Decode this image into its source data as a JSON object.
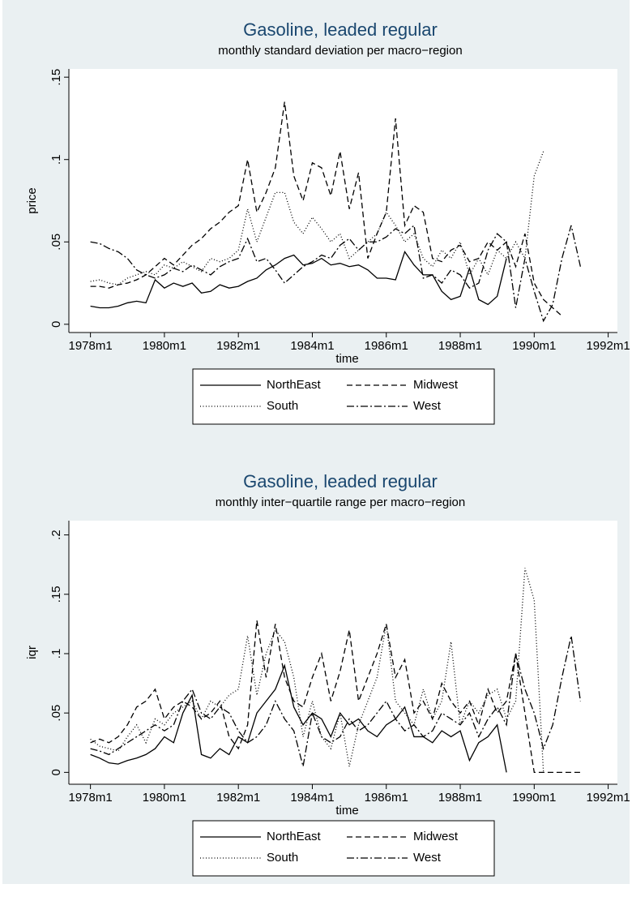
{
  "chart_data": [
    {
      "type": "line",
      "title": "Gasoline, leaded regular",
      "subtitle": "monthly standard deviation per macro−region",
      "x_label": "time",
      "y_label": "price",
      "x": [
        "1978m1",
        "1978m4",
        "1978m7",
        "1978m10",
        "1979m1",
        "1979m4",
        "1979m7",
        "1979m10",
        "1980m1",
        "1980m4",
        "1980m7",
        "1980m10",
        "1981m1",
        "1981m4",
        "1981m7",
        "1981m10",
        "1982m1",
        "1982m4",
        "1982m7",
        "1982m10",
        "1983m1",
        "1983m4",
        "1983m7",
        "1983m10",
        "1984m1",
        "1984m4",
        "1984m7",
        "1984m10",
        "1985m1",
        "1985m4",
        "1985m7",
        "1985m10",
        "1986m1",
        "1986m4",
        "1986m7",
        "1986m10",
        "1987m1",
        "1987m4",
        "1987m7",
        "1987m10",
        "1988m1",
        "1988m4",
        "1988m7",
        "1988m10",
        "1989m1",
        "1989m4",
        "1989m7",
        "1989m10",
        "1990m1",
        "1990m4",
        "1990m7",
        "1990m10",
        "1991m1",
        "1991m4"
      ],
      "xlim": [
        "1977m6",
        "1992m4"
      ],
      "xticks": [
        "1978m1",
        "1980m1",
        "1982m1",
        "1984m1",
        "1986m1",
        "1988m1",
        "1990m1",
        "1992m1"
      ],
      "ylim": [
        -0.005,
        0.155
      ],
      "yticks": [
        {
          "value": 0,
          "label": "0"
        },
        {
          "value": 0.05,
          "label": ".05"
        },
        {
          "value": 0.1,
          "label": ".1"
        },
        {
          "value": 0.15,
          "label": ".15"
        }
      ],
      "legend": "bottom",
      "series": [
        {
          "name": "NorthEast",
          "color": "#000000",
          "dash": "solid",
          "values": [
            0.011,
            0.01,
            0.01,
            0.011,
            0.013,
            0.014,
            0.013,
            0.027,
            0.022,
            0.025,
            0.023,
            0.025,
            0.019,
            0.02,
            0.024,
            0.022,
            0.023,
            0.026,
            0.028,
            0.033,
            0.036,
            0.04,
            0.042,
            0.036,
            0.037,
            0.04,
            0.036,
            0.037,
            0.035,
            0.036,
            0.033,
            0.028,
            0.028,
            0.027,
            0.044,
            0.036,
            0.03,
            0.03,
            0.02,
            0.015,
            0.017,
            0.034,
            0.015,
            0.012,
            0.017,
            0.04,
            null,
            null,
            null,
            null,
            null,
            null,
            null,
            null
          ]
        },
        {
          "name": "Midwest",
          "color": "#000000",
          "dash": "dash",
          "values": [
            0.023,
            0.023,
            0.022,
            0.024,
            0.025,
            0.027,
            0.03,
            0.035,
            0.04,
            0.036,
            0.042,
            0.048,
            0.052,
            0.058,
            0.062,
            0.068,
            0.072,
            0.1,
            0.068,
            0.08,
            0.095,
            0.135,
            0.09,
            0.075,
            0.098,
            0.095,
            0.078,
            0.105,
            0.07,
            0.092,
            0.04,
            0.055,
            0.068,
            0.125,
            0.06,
            0.072,
            0.068,
            0.04,
            0.038,
            0.045,
            0.048,
            0.038,
            0.04,
            0.05,
            0.045,
            0.05,
            0.035,
            0.055,
            0.025,
            0.015,
            0.01,
            0.005,
            null,
            null
          ]
        },
        {
          "name": "South",
          "color": "#000000",
          "dash": "dot",
          "values": [
            0.026,
            0.027,
            0.025,
            0.024,
            0.028,
            0.03,
            0.032,
            0.03,
            0.036,
            0.034,
            0.038,
            0.035,
            0.032,
            0.04,
            0.038,
            0.04,
            0.045,
            0.07,
            0.05,
            0.065,
            0.08,
            0.08,
            0.062,
            0.055,
            0.065,
            0.058,
            0.05,
            0.055,
            0.04,
            0.045,
            0.05,
            0.055,
            0.068,
            0.06,
            0.05,
            0.055,
            0.04,
            0.035,
            0.045,
            0.04,
            0.05,
            0.03,
            0.04,
            0.03,
            0.045,
            0.04,
            0.05,
            0.04,
            0.09,
            0.105,
            null,
            null,
            null,
            null
          ]
        },
        {
          "name": "West",
          "color": "#000000",
          "dash": "dashdot",
          "values": [
            0.05,
            0.049,
            0.046,
            0.044,
            0.04,
            0.033,
            0.03,
            0.028,
            0.03,
            0.034,
            0.032,
            0.036,
            0.033,
            0.03,
            0.035,
            0.038,
            0.04,
            0.052,
            0.038,
            0.04,
            0.033,
            0.025,
            0.03,
            0.035,
            0.038,
            0.042,
            0.04,
            0.048,
            0.052,
            0.045,
            0.05,
            0.05,
            0.053,
            0.058,
            0.055,
            0.06,
            0.028,
            0.03,
            0.025,
            0.033,
            0.03,
            0.022,
            0.025,
            0.045,
            0.055,
            0.05,
            0.01,
            0.04,
            0.02,
            0.002,
            0.012,
            0.04,
            0.06,
            0.035
          ]
        }
      ]
    },
    {
      "type": "line",
      "title": "Gasoline, leaded regular",
      "subtitle": "monthly inter−quartile range per macro−region",
      "x_label": "time",
      "y_label": "iqr",
      "x": [
        "1978m1",
        "1978m4",
        "1978m7",
        "1978m10",
        "1979m1",
        "1979m4",
        "1979m7",
        "1979m10",
        "1980m1",
        "1980m4",
        "1980m7",
        "1980m10",
        "1981m1",
        "1981m4",
        "1981m7",
        "1981m10",
        "1982m1",
        "1982m4",
        "1982m7",
        "1982m10",
        "1983m1",
        "1983m4",
        "1983m7",
        "1983m10",
        "1984m1",
        "1984m4",
        "1984m7",
        "1984m10",
        "1985m1",
        "1985m4",
        "1985m7",
        "1985m10",
        "1986m1",
        "1986m4",
        "1986m7",
        "1986m10",
        "1987m1",
        "1987m4",
        "1987m7",
        "1987m10",
        "1988m1",
        "1988m4",
        "1988m7",
        "1988m10",
        "1989m1",
        "1989m4",
        "1989m7",
        "1989m10",
        "1990m1",
        "1990m4",
        "1990m7",
        "1990m10",
        "1991m1",
        "1991m4"
      ],
      "xlim": [
        "1977m6",
        "1992m4"
      ],
      "xticks": [
        "1978m1",
        "1980m1",
        "1982m1",
        "1984m1",
        "1986m1",
        "1988m1",
        "1990m1",
        "1992m1"
      ],
      "ylim": [
        -0.01,
        0.212
      ],
      "yticks": [
        {
          "value": 0,
          "label": "0"
        },
        {
          "value": 0.05,
          "label": ".05"
        },
        {
          "value": 0.1,
          "label": ".1"
        },
        {
          "value": 0.15,
          "label": ".15"
        },
        {
          "value": 0.2,
          "label": ".2"
        }
      ],
      "legend": "bottom",
      "series": [
        {
          "name": "NorthEast",
          "color": "#000000",
          "dash": "solid",
          "values": [
            0.015,
            0.012,
            0.008,
            0.007,
            0.01,
            0.012,
            0.015,
            0.02,
            0.03,
            0.025,
            0.05,
            0.065,
            0.015,
            0.012,
            0.02,
            0.015,
            0.03,
            0.025,
            0.05,
            0.06,
            0.07,
            0.09,
            0.055,
            0.04,
            0.05,
            0.045,
            0.03,
            0.05,
            0.04,
            0.045,
            0.035,
            0.03,
            0.04,
            0.045,
            0.055,
            0.03,
            0.03,
            0.025,
            0.035,
            0.03,
            0.035,
            0.01,
            0.025,
            0.03,
            0.04,
            0.0,
            null,
            null,
            null,
            null,
            null,
            null,
            null,
            null
          ]
        },
        {
          "name": "Midwest",
          "color": "#000000",
          "dash": "dash",
          "values": [
            0.025,
            0.028,
            0.025,
            0.03,
            0.04,
            0.055,
            0.06,
            0.07,
            0.045,
            0.055,
            0.06,
            0.055,
            0.045,
            0.05,
            0.06,
            0.03,
            0.02,
            0.04,
            0.128,
            0.08,
            0.125,
            0.08,
            0.06,
            0.055,
            0.08,
            0.1,
            0.06,
            0.085,
            0.12,
            0.06,
            0.08,
            0.1,
            0.125,
            0.08,
            0.095,
            0.05,
            0.06,
            0.045,
            0.075,
            0.06,
            0.05,
            0.06,
            0.04,
            0.07,
            0.05,
            0.06,
            0.1,
            0.05,
            0.0,
            0.0,
            0.0,
            0.0,
            0.0,
            0.0
          ]
        },
        {
          "name": "South",
          "color": "#000000",
          "dash": "dot",
          "values": [
            0.028,
            0.022,
            0.02,
            0.018,
            0.03,
            0.04,
            0.025,
            0.045,
            0.04,
            0.05,
            0.055,
            0.06,
            0.045,
            0.06,
            0.055,
            0.065,
            0.07,
            0.115,
            0.065,
            0.1,
            0.12,
            0.11,
            0.08,
            0.03,
            0.06,
            0.03,
            0.02,
            0.05,
            0.005,
            0.04,
            0.06,
            0.08,
            0.125,
            0.06,
            0.05,
            0.04,
            0.07,
            0.045,
            0.06,
            0.11,
            0.04,
            0.06,
            0.05,
            0.065,
            0.07,
            0.045,
            0.06,
            0.172,
            0.145,
            0.0,
            null,
            null,
            null,
            null
          ]
        },
        {
          "name": "West",
          "color": "#000000",
          "dash": "dashdot",
          "values": [
            0.02,
            0.018,
            0.015,
            0.02,
            0.025,
            0.03,
            0.035,
            0.04,
            0.035,
            0.04,
            0.06,
            0.07,
            0.05,
            0.045,
            0.055,
            0.05,
            0.035,
            0.025,
            0.03,
            0.04,
            0.06,
            0.045,
            0.035,
            0.005,
            0.05,
            0.03,
            0.025,
            0.03,
            0.045,
            0.035,
            0.04,
            0.05,
            0.06,
            0.045,
            0.035,
            0.04,
            0.03,
            0.035,
            0.05,
            0.045,
            0.04,
            0.05,
            0.03,
            0.045,
            0.055,
            0.04,
            0.1,
            0.07,
            0.05,
            0.02,
            0.04,
            0.08,
            0.115,
            0.06
          ]
        }
      ]
    }
  ]
}
